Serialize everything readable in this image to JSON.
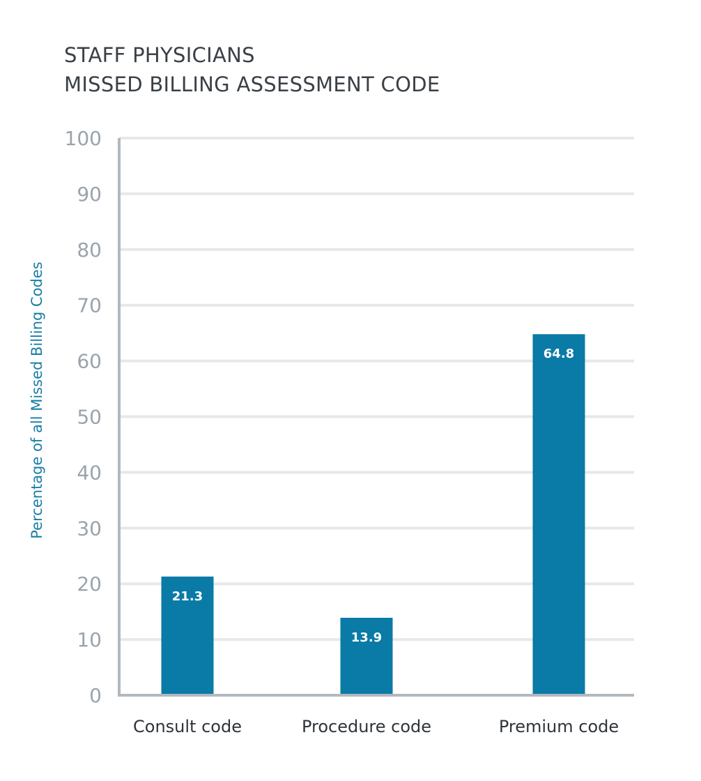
{
  "chart_data": {
    "type": "bar",
    "title": "STAFF PHYSICIANS",
    "subtitle": "MISSED BILLING ASSESSMENT CODE",
    "ylabel": "Percentage of all Missed Billing Codes",
    "xlabel": "",
    "ylim": [
      0,
      100
    ],
    "yticks": [
      0,
      10,
      20,
      30,
      40,
      50,
      60,
      70,
      80,
      90,
      100
    ],
    "categories": [
      "Consult code",
      "Procedure code",
      "Premium code"
    ],
    "values": [
      21.3,
      13.9,
      64.8
    ],
    "data_labels": [
      "21.3",
      "13.9",
      "64.8"
    ],
    "grid": true,
    "legend": "none",
    "colors": {
      "bar": "#0a7aa6",
      "grid": "#e6e8ea",
      "axis": "#b3b8bd",
      "tick_text": "#9aa3ad",
      "ylabel_text": "#1a7ea6",
      "title_text": "#3a4047"
    }
  }
}
